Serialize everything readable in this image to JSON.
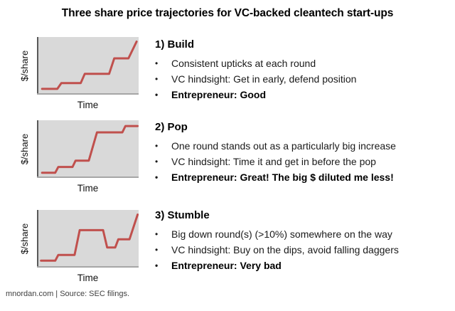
{
  "title": "Three share price trajectories for VC-backed cleantech start-ups",
  "footer": "mnordan.com | Source: SEC filings.",
  "bullet_char": "•",
  "colors": {
    "line": "#c0504d",
    "plot_bg": "#d9d9d9",
    "axis_y": "#595959",
    "axis_x": "#a6a6a6",
    "text": "#000000",
    "footer_text": "#3f3f3f"
  },
  "sections": [
    {
      "heading": "1) Build",
      "bullets": [
        "Consistent upticks at each round",
        "VC hindsight: Get in early, defend position",
        "Entrepreneur: Good"
      ]
    },
    {
      "heading": "2) Pop",
      "bullets": [
        "One round stands out as a particularly big increase",
        "VC hindsight: Time it and get in before the pop",
        "Entrepreneur: Great! The big $ diluted me less!"
      ]
    },
    {
      "heading": "3) Stumble",
      "bullets": [
        "Big down round(s) (>10%) somewhere on the way",
        "VC hindsight: Buy on the dips, avoid falling daggers",
        "Entrepreneur: Very bad"
      ]
    }
  ],
  "chart_data": [
    {
      "type": "line",
      "title": "1) Build",
      "xlabel": "Time",
      "ylabel": "$/share",
      "axis_ticks": "none (conceptual sketch, unlabeled axes)",
      "legend": "none",
      "grid": false,
      "line_color": "#c0504d",
      "plot_bg": "#d9d9d9",
      "xlim": [
        0,
        100
      ],
      "ylim": [
        0,
        100
      ],
      "points": [
        [
          5,
          10
        ],
        [
          20,
          10
        ],
        [
          24,
          20
        ],
        [
          43,
          20
        ],
        [
          47,
          36
        ],
        [
          71,
          36
        ],
        [
          76,
          63
        ],
        [
          90,
          63
        ],
        [
          98,
          92
        ]
      ],
      "shape_description": "staircase rising steadily: flat, small step up at each funding round, ends high"
    },
    {
      "type": "line",
      "title": "2) Pop",
      "xlabel": "Time",
      "ylabel": "$/share",
      "axis_ticks": "none (conceptual sketch, unlabeled axes)",
      "legend": "none",
      "grid": false,
      "line_color": "#c0504d",
      "plot_bg": "#d9d9d9",
      "xlim": [
        0,
        100
      ],
      "ylim": [
        0,
        100
      ],
      "points": [
        [
          5,
          9
        ],
        [
          18,
          9
        ],
        [
          21,
          19
        ],
        [
          35,
          19
        ],
        [
          38,
          30
        ],
        [
          51,
          30
        ],
        [
          59,
          79
        ],
        [
          84,
          79
        ],
        [
          87,
          90
        ],
        [
          99,
          90
        ]
      ],
      "shape_description": "small steps then one very large jump (the pop), then plateau with small final uptick"
    },
    {
      "type": "line",
      "title": "3) Stumble",
      "xlabel": "Time",
      "ylabel": "$/share",
      "axis_ticks": "none (conceptual sketch, unlabeled axes)",
      "legend": "none",
      "grid": false,
      "line_color": "#c0504d",
      "plot_bg": "#d9d9d9",
      "xlim": [
        0,
        100
      ],
      "ylim": [
        0,
        100
      ],
      "points": [
        [
          4,
          12
        ],
        [
          18,
          12
        ],
        [
          21,
          22
        ],
        [
          37,
          22
        ],
        [
          42,
          65
        ],
        [
          65,
          65
        ],
        [
          69,
          35
        ],
        [
          77,
          35
        ],
        [
          80,
          49
        ],
        [
          91,
          49
        ],
        [
          99,
          92
        ]
      ],
      "shape_description": "rise, big jump, plateau, big down round (drop), partial recovery, steep rise at end"
    }
  ]
}
